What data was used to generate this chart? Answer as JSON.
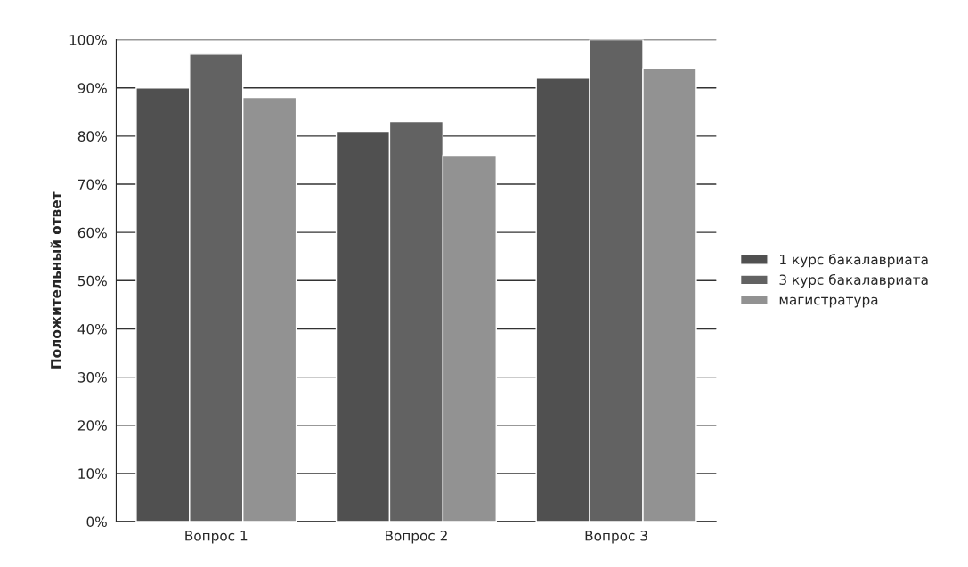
{
  "chart_data": {
    "type": "bar",
    "ylabel": "Положительный ответ",
    "categories": [
      "Вопрос 1",
      "Вопрос 2",
      "Вопрос 3"
    ],
    "series": [
      {
        "name": "1 курс бакалавриата",
        "color": "#505050",
        "values": [
          90,
          81,
          92
        ]
      },
      {
        "name": "3 курс бакалавриата",
        "color": "#626262",
        "values": [
          97,
          83,
          100
        ]
      },
      {
        "name": "магистратура",
        "color": "#929292",
        "values": [
          88,
          76,
          94
        ]
      }
    ],
    "ylim": [
      0,
      100
    ],
    "yticks": [
      {
        "value": 0,
        "label": "0%"
      },
      {
        "value": 10,
        "label": "10%"
      },
      {
        "value": 20,
        "label": "20%"
      },
      {
        "value": 30,
        "label": "30%"
      },
      {
        "value": 40,
        "label": "40%"
      },
      {
        "value": 50,
        "label": "50%"
      },
      {
        "value": 60,
        "label": "60%"
      },
      {
        "value": 70,
        "label": "70%"
      },
      {
        "value": 80,
        "label": "80%"
      },
      {
        "value": 90,
        "label": "90%"
      },
      {
        "value": 100,
        "label": "100%"
      }
    ],
    "grid": "y",
    "legend": "right"
  }
}
